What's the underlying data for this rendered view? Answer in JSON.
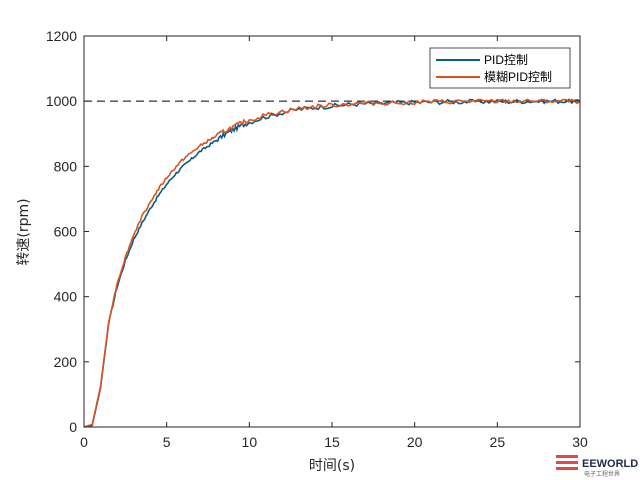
{
  "chart_data": {
    "type": "line",
    "xlabel": "时间(s)",
    "ylabel": "转速(rpm)",
    "xlim": [
      0,
      30
    ],
    "ylim": [
      0,
      1200
    ],
    "x_ticks": [
      0,
      5,
      10,
      15,
      20,
      25,
      30
    ],
    "y_ticks": [
      0,
      200,
      400,
      600,
      800,
      1000,
      1200
    ],
    "grid": false,
    "legend_position": "top-right",
    "reference_line": {
      "y": 1000,
      "style": "dashed",
      "color": "#000000"
    },
    "x": [
      0,
      0.5,
      1,
      1.5,
      2,
      2.5,
      3,
      3.5,
      4,
      4.5,
      5,
      5.5,
      6,
      6.5,
      7,
      7.5,
      8,
      8.5,
      9,
      9.5,
      10,
      11,
      12,
      13,
      14,
      15,
      16,
      17,
      18,
      19,
      20,
      21,
      22,
      23,
      24,
      25,
      26,
      27,
      28,
      29,
      30
    ],
    "series": [
      {
        "name": "PID控制",
        "color": "#0b5b8c",
        "values": [
          0,
          5,
          120,
          320,
          430,
          510,
          575,
          625,
          670,
          710,
          745,
          775,
          800,
          822,
          845,
          862,
          880,
          897,
          912,
          925,
          935,
          952,
          965,
          975,
          981,
          985,
          990,
          992,
          993,
          995,
          996,
          997,
          998,
          998,
          999,
          999,
          999,
          1000,
          1000,
          1000,
          1000
        ]
      },
      {
        "name": "模糊PID控制",
        "color": "#d9541d",
        "values": [
          0,
          8,
          125,
          325,
          440,
          520,
          590,
          645,
          690,
          730,
          765,
          795,
          822,
          842,
          862,
          878,
          893,
          908,
          920,
          932,
          942,
          957,
          968,
          977,
          983,
          988,
          991,
          993,
          995,
          996,
          997,
          998,
          998,
          999,
          999,
          999,
          1000,
          1000,
          1000,
          1000,
          1000
        ]
      }
    ]
  },
  "watermark": {
    "brand": "EEWORLD",
    "sub": "电子工程世界"
  }
}
